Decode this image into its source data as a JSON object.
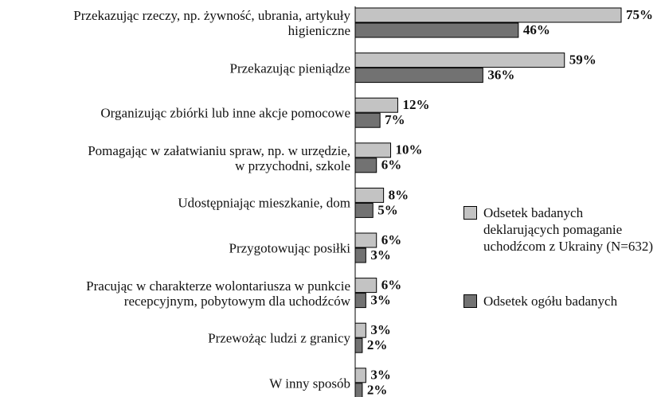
{
  "chart_data": {
    "type": "bar",
    "orientation": "horizontal",
    "categories": [
      "Przekazując rzeczy, np. żywność, ubrania, artykuły\nhigieniczne",
      "Przekazując pieniądze",
      "Organizując zbiórki lub inne akcje pomocowe",
      "Pomagając w załatwianiu spraw, np. w urzędzie,\nw przychodni, szkole",
      "Udostępniając mieszkanie, dom",
      "Przygotowując posiłki",
      "Pracując w charakterze wolontariusza w punkcie\nrecepcyjnym, pobytowym dla uchodźców",
      "Przewożąc ludzi z granicy",
      "W inny sposób"
    ],
    "series": [
      {
        "name": "Odsetek badanych deklarujących pomaganie uchodźcom z Ukrainy (N=632)",
        "color": "#c3c3c3",
        "values": [
          75,
          59,
          12,
          10,
          8,
          6,
          6,
          3,
          3
        ],
        "value_labels": [
          "75%",
          "59%",
          "12%",
          "10%",
          "8%",
          "6%",
          "6%",
          "3%",
          "3%"
        ]
      },
      {
        "name": "Odsetek ogółu badanych",
        "color": "#727272",
        "values": [
          46,
          36,
          7,
          6,
          5,
          3,
          3,
          2,
          2
        ],
        "value_labels": [
          "46%",
          "36%",
          "7%",
          "6%",
          "5%",
          "3%",
          "3%",
          "2%",
          "2%"
        ]
      }
    ],
    "xlim": [
      0,
      75
    ]
  }
}
